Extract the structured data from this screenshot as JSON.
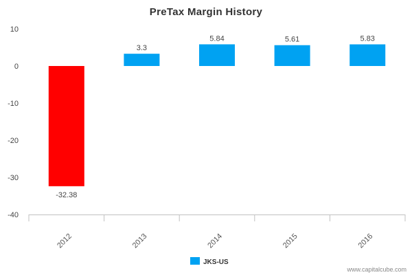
{
  "chart_data": {
    "type": "bar",
    "title": "PreTax Margin History",
    "categories": [
      "2012",
      "2013",
      "2014",
      "2015",
      "2016"
    ],
    "series": [
      {
        "name": "JKS-US",
        "values": [
          -32.38,
          3.3,
          5.84,
          5.61,
          5.83
        ],
        "data_labels": [
          "-32.38",
          "3.3",
          "5.84",
          "5.61",
          "5.83"
        ],
        "color": "#00a2f2",
        "negative_color": "#ff0000"
      }
    ],
    "ylim": [
      -40,
      10
    ],
    "yticks": [
      10,
      0,
      -10,
      -20,
      -30,
      -40
    ],
    "xlabel": "",
    "ylabel": "",
    "grid": false,
    "legend_placement": "bottom-center"
  },
  "watermark": "www.capitalcube.com"
}
